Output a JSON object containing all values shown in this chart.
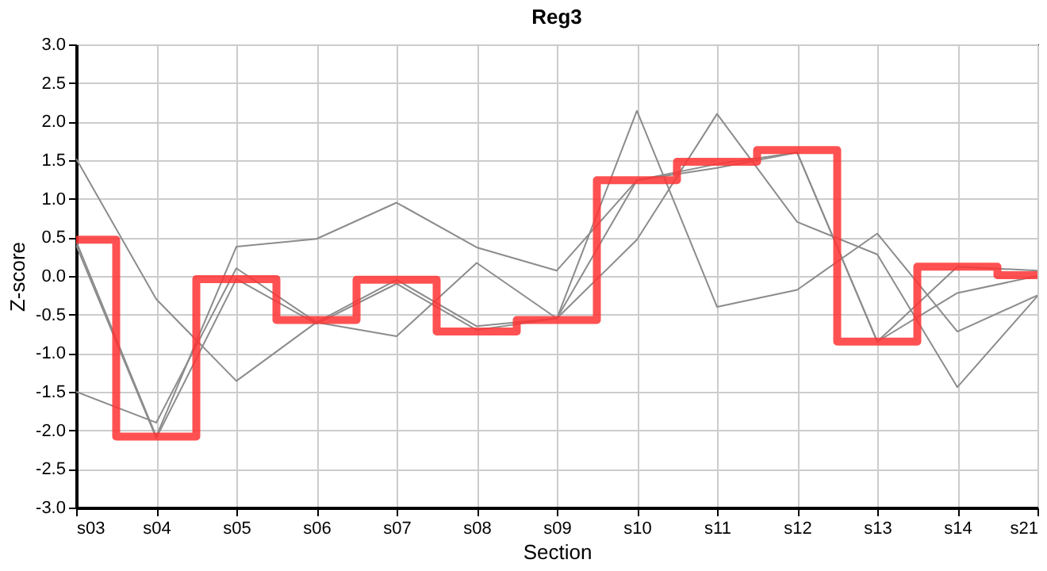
{
  "chart_data": {
    "type": "line",
    "title": "Reg3",
    "xlabel": "Section",
    "ylabel": "Z-score",
    "categories": [
      "s03",
      "s04",
      "s05",
      "s06",
      "s07",
      "s08",
      "s09",
      "s10",
      "s11",
      "s12",
      "s13",
      "s14",
      "s21"
    ],
    "series": [
      {
        "color": "#8c8c8c",
        "values": [
          1.52,
          -0.3,
          -1.36,
          -0.6,
          -0.78,
          0.17,
          -0.55,
          2.14,
          -0.4,
          -0.18,
          0.55,
          -0.72,
          -0.25
        ]
      },
      {
        "color": "#8c8c8c",
        "values": [
          0.45,
          -2.08,
          0.38,
          0.48,
          0.95,
          0.37,
          0.07,
          1.24,
          1.45,
          1.6,
          -0.85,
          0.12,
          0.07
        ]
      },
      {
        "color": "#8c8c8c",
        "values": [
          -1.5,
          -1.9,
          0.1,
          -0.6,
          -0.05,
          -0.65,
          -0.55,
          0.47,
          2.1,
          0.7,
          0.28,
          -1.44,
          -0.26
        ]
      },
      {
        "color": "#8c8c8c",
        "values": [
          0.4,
          -2.1,
          -0.04,
          -0.62,
          -0.1,
          -0.7,
          -0.55,
          1.24,
          1.4,
          1.6,
          -0.85,
          -0.22,
          0.0
        ]
      },
      {
        "type": "step",
        "color": "#ff3333",
        "values": [
          0.47,
          -2.08,
          -0.04,
          -0.57,
          -0.05,
          -0.72,
          -0.57,
          1.24,
          1.48,
          1.63,
          -0.85,
          0.12,
          0.01
        ]
      }
    ],
    "ylim": [
      -3,
      3
    ],
    "yticks": [
      {
        "value": -3,
        "label": "-3.0"
      },
      {
        "value": -2.5,
        "label": "-2.5"
      },
      {
        "value": -2,
        "label": "-2.0"
      },
      {
        "value": -1.5,
        "label": "-1.5"
      },
      {
        "value": -1,
        "label": "-1.0"
      },
      {
        "value": -0.5,
        "label": "-0.5"
      },
      {
        "value": 0,
        "label": "0.0"
      },
      {
        "value": 0.5,
        "label": "0.5"
      },
      {
        "value": 1,
        "label": "1.0"
      },
      {
        "value": 1.5,
        "label": "1.5"
      },
      {
        "value": 2,
        "label": "2.0"
      },
      {
        "value": 2.5,
        "label": "2.5"
      },
      {
        "value": 3,
        "label": "3.0"
      }
    ],
    "grid": true,
    "marker": "none",
    "line_style": "solid"
  }
}
